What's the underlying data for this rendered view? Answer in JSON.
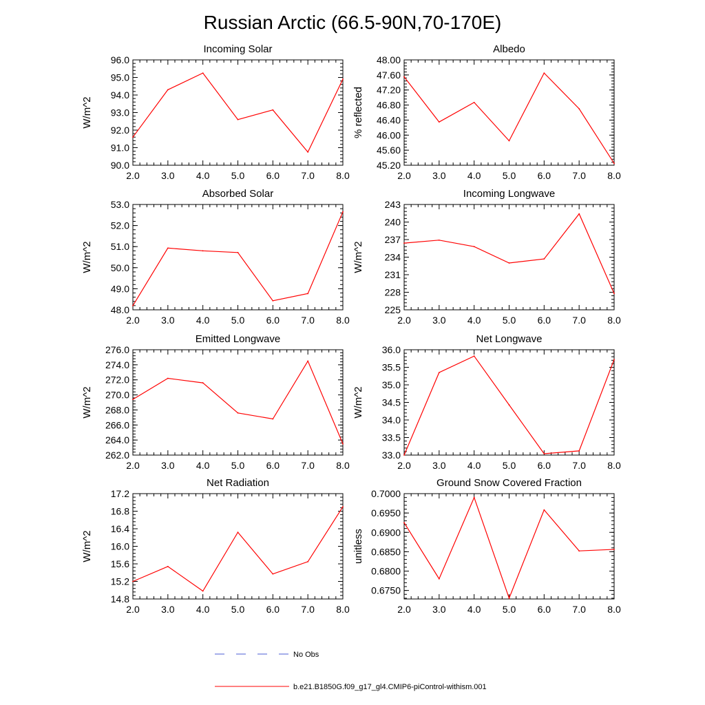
{
  "figure": {
    "title": "Russian Arctic (66.5-90N,70-170E)",
    "series_color": "#ff0000",
    "obs_color": "#4a5bd4",
    "legend": [
      {
        "label": "No Obs",
        "style": "dashed",
        "color": "#4a5bd4"
      },
      {
        "label": "b.e21.B1850G.f09_g17_gl4.CMIP6-piControl-withism.001",
        "style": "solid",
        "color": "#ff0000"
      }
    ]
  },
  "chart_data": [
    {
      "type": "line",
      "title": "Incoming Solar",
      "ylabel": "W/m^2",
      "x": [
        2,
        3,
        4,
        5,
        6,
        7,
        8
      ],
      "x_ticks": [
        "2.0",
        "3.0",
        "4.0",
        "5.0",
        "6.0",
        "7.0",
        "8.0"
      ],
      "values": [
        91.6,
        94.3,
        95.25,
        92.6,
        93.15,
        90.75,
        94.9
      ],
      "ylim": [
        90,
        96
      ],
      "y_ticks": [
        "90.0",
        "91.0",
        "92.0",
        "93.0",
        "94.0",
        "95.0",
        "96.0"
      ]
    },
    {
      "type": "line",
      "title": "Albedo",
      "ylabel": "% reflected",
      "x": [
        2,
        3,
        4,
        5,
        6,
        7,
        8
      ],
      "x_ticks": [
        "2.0",
        "3.0",
        "4.0",
        "5.0",
        "6.0",
        "7.0",
        "8.0"
      ],
      "values": [
        47.55,
        46.35,
        46.87,
        45.85,
        47.65,
        46.7,
        45.25
      ],
      "ylim": [
        45.2,
        48.0
      ],
      "y_ticks": [
        "45.20",
        "45.60",
        "46.00",
        "46.40",
        "46.80",
        "47.20",
        "47.60",
        "48.00"
      ]
    },
    {
      "type": "line",
      "title": "Absorbed Solar",
      "ylabel": "W/m^2",
      "x": [
        2,
        3,
        4,
        5,
        6,
        7,
        8
      ],
      "x_ticks": [
        "2.0",
        "3.0",
        "4.0",
        "5.0",
        "6.0",
        "7.0",
        "8.0"
      ],
      "values": [
        48.2,
        50.93,
        50.8,
        50.72,
        48.43,
        48.77,
        52.65
      ],
      "ylim": [
        48,
        53
      ],
      "y_ticks": [
        "48.0",
        "49.0",
        "50.0",
        "51.0",
        "52.0",
        "53.0"
      ]
    },
    {
      "type": "line",
      "title": "Incoming Longwave",
      "ylabel": "W/m^2",
      "x": [
        2,
        3,
        4,
        5,
        6,
        7,
        8
      ],
      "x_ticks": [
        "2.0",
        "3.0",
        "4.0",
        "5.0",
        "6.0",
        "7.0",
        "8.0"
      ],
      "values": [
        236.4,
        236.9,
        235.8,
        233.0,
        233.7,
        241.4,
        227.8
      ],
      "ylim": [
        225,
        243
      ],
      "y_ticks": [
        "225",
        "228",
        "231",
        "234",
        "237",
        "240",
        "243"
      ]
    },
    {
      "type": "line",
      "title": "Emitted Longwave",
      "ylabel": "W/m^2",
      "x": [
        2,
        3,
        4,
        5,
        6,
        7,
        8
      ],
      "x_ticks": [
        "2.0",
        "3.0",
        "4.0",
        "5.0",
        "6.0",
        "7.0",
        "8.0"
      ],
      "values": [
        269.4,
        272.2,
        271.6,
        267.6,
        266.8,
        274.5,
        263.5
      ],
      "ylim": [
        262,
        276
      ],
      "y_ticks": [
        "262.0",
        "264.0",
        "266.0",
        "268.0",
        "270.0",
        "272.0",
        "274.0",
        "276.0"
      ]
    },
    {
      "type": "line",
      "title": "Net Longwave",
      "ylabel": "W/m^2",
      "x": [
        2,
        3,
        4,
        5,
        6,
        7,
        8
      ],
      "x_ticks": [
        "2.0",
        "3.0",
        "4.0",
        "5.0",
        "6.0",
        "7.0",
        "8.0"
      ],
      "values": [
        33.0,
        35.35,
        35.82,
        34.43,
        33.04,
        33.12,
        35.72
      ],
      "ylim": [
        33,
        36
      ],
      "y_ticks": [
        "33.0",
        "33.5",
        "34.0",
        "34.5",
        "35.0",
        "35.5",
        "36.0"
      ]
    },
    {
      "type": "line",
      "title": "Net Radiation",
      "ylabel": "W/m^2",
      "x": [
        2,
        3,
        4,
        5,
        6,
        7,
        8
      ],
      "x_ticks": [
        "2.0",
        "3.0",
        "4.0",
        "5.0",
        "6.0",
        "7.0",
        "8.0"
      ],
      "values": [
        15.2,
        15.54,
        14.98,
        16.32,
        15.37,
        15.65,
        16.9
      ],
      "ylim": [
        14.8,
        17.2
      ],
      "y_ticks": [
        "14.8",
        "15.2",
        "15.6",
        "16.0",
        "16.4",
        "16.8",
        "17.2"
      ]
    },
    {
      "type": "line",
      "title": "Ground Snow Covered Fraction",
      "ylabel": "unitless",
      "x": [
        2,
        3,
        4,
        5,
        6,
        7,
        8
      ],
      "x_ticks": [
        "2.0",
        "3.0",
        "4.0",
        "5.0",
        "6.0",
        "7.0",
        "8.0"
      ],
      "values": [
        0.6925,
        0.678,
        0.699,
        0.673,
        0.6958,
        0.6852,
        0.6856
      ],
      "ylim": [
        0.6728,
        0.7
      ],
      "y_ticks": [
        "0.6750",
        "0.6800",
        "0.6850",
        "0.6900",
        "0.6950",
        "0.7000"
      ]
    }
  ]
}
